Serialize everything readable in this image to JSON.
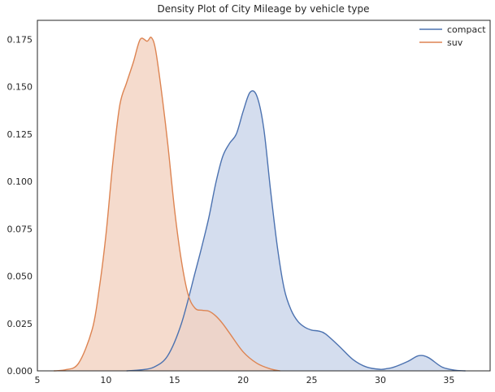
{
  "chart_data": {
    "type": "area",
    "title": "Density Plot of City Mileage by vehicle type",
    "xlabel": "",
    "ylabel": "",
    "xlim": [
      5,
      38
    ],
    "ylim": [
      0,
      0.185
    ],
    "xticks": [
      5,
      10,
      15,
      20,
      25,
      30,
      35
    ],
    "yticks": [
      0.0,
      0.025,
      0.05,
      0.075,
      0.1,
      0.125,
      0.15,
      0.175
    ],
    "ytick_labels": [
      "0.000",
      "0.025",
      "0.050",
      "0.075",
      "0.100",
      "0.125",
      "0.150",
      "0.175"
    ],
    "grid": false,
    "legend": "top-right",
    "series": [
      {
        "name": "compact",
        "line_color": "#4c72b0",
        "fill_color": "#c9d4ea",
        "x": [
          11.5,
          12.5,
          13.5,
          14.5,
          15.5,
          16.5,
          17.0,
          17.5,
          18.0,
          18.5,
          19.0,
          19.5,
          20.0,
          20.5,
          21.0,
          21.5,
          22.0,
          22.5,
          23.0,
          23.5,
          24.0,
          24.5,
          25.0,
          25.5,
          26.0,
          27.0,
          28.0,
          29.0,
          30.0,
          30.5,
          31.0,
          32.0,
          32.8,
          33.5,
          34.5,
          35.5,
          36.2
        ],
        "y": [
          0.0,
          0.0005,
          0.002,
          0.008,
          0.025,
          0.052,
          0.066,
          0.081,
          0.099,
          0.113,
          0.12,
          0.125,
          0.137,
          0.147,
          0.145,
          0.128,
          0.095,
          0.065,
          0.043,
          0.032,
          0.026,
          0.023,
          0.0215,
          0.021,
          0.0195,
          0.013,
          0.006,
          0.002,
          0.0008,
          0.0012,
          0.002,
          0.005,
          0.008,
          0.007,
          0.002,
          0.0003,
          0.0
        ]
      },
      {
        "name": "suv",
        "line_color": "#dd8452",
        "fill_color": "#f3d2c0",
        "x": [
          6.2,
          7.0,
          8.0,
          9.0,
          9.5,
          10.0,
          10.5,
          11.0,
          11.5,
          12.0,
          12.5,
          13.0,
          13.3,
          13.6,
          14.0,
          14.5,
          15.0,
          15.5,
          16.0,
          16.5,
          17.0,
          17.5,
          18.0,
          18.5,
          19.0,
          20.0,
          21.0,
          22.0,
          22.7
        ],
        "y": [
          0.0,
          0.0005,
          0.004,
          0.022,
          0.043,
          0.072,
          0.11,
          0.14,
          0.152,
          0.163,
          0.175,
          0.174,
          0.176,
          0.17,
          0.15,
          0.12,
          0.085,
          0.058,
          0.04,
          0.033,
          0.032,
          0.0315,
          0.029,
          0.025,
          0.02,
          0.01,
          0.004,
          0.001,
          0.0
        ]
      }
    ]
  }
}
